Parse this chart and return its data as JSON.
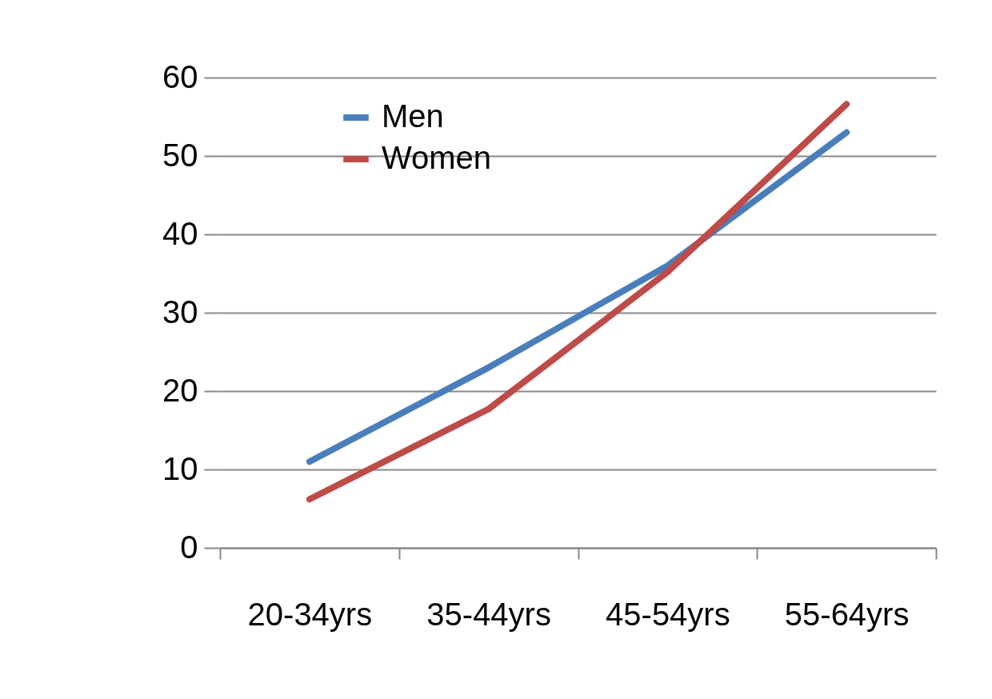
{
  "chart_data": {
    "type": "line",
    "categories": [
      "20-34yrs",
      "35-44yrs",
      "45-54yrs",
      "55-64yrs"
    ],
    "series": [
      {
        "name": "Men",
        "color": "#4a7ebb",
        "values": [
          11,
          23,
          36,
          53
        ]
      },
      {
        "name": "Women",
        "color": "#be4b48",
        "values": [
          6.2,
          17.7,
          35.2,
          56.6
        ]
      }
    ],
    "ylim": [
      0,
      60
    ],
    "yticks": [
      0,
      10,
      20,
      30,
      40,
      50,
      60
    ],
    "grid": "y",
    "legend": "top left",
    "marker": "none",
    "line_style": "solid"
  }
}
